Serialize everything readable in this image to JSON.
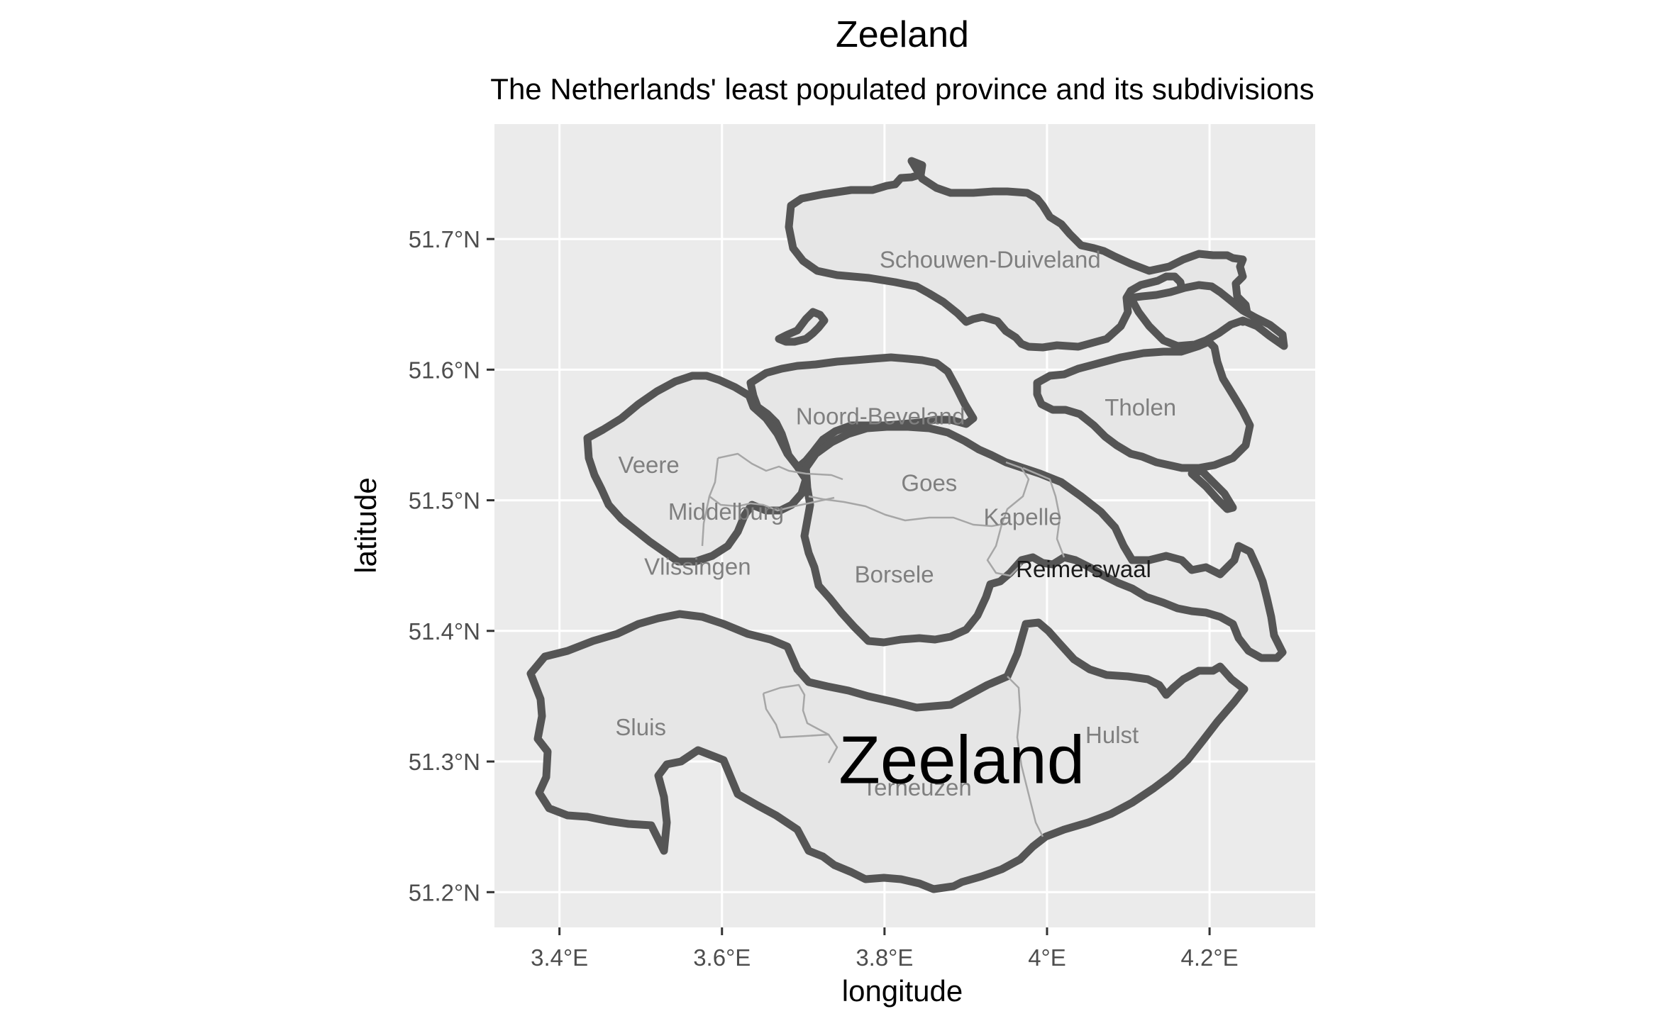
{
  "chart_data": {
    "type": "map",
    "title": "Zeeland",
    "subtitle": "The Netherlands' least populated province and its subdivisions",
    "xlabel": "longitude",
    "ylabel": "latitude",
    "xlim": [
      3.32,
      4.33
    ],
    "ylim": [
      51.173,
      51.788
    ],
    "x_ticks": [
      {
        "value": 3.4,
        "label": "3.4°E"
      },
      {
        "value": 3.6,
        "label": "3.6°E"
      },
      {
        "value": 3.8,
        "label": "3.8°E"
      },
      {
        "value": 4.0,
        "label": "4°E"
      },
      {
        "value": 4.2,
        "label": "4.2°E"
      }
    ],
    "y_ticks": [
      {
        "value": 51.2,
        "label": "51.2°N"
      },
      {
        "value": 51.3,
        "label": "51.3°N"
      },
      {
        "value": 51.4,
        "label": "51.4°N"
      },
      {
        "value": 51.5,
        "label": "51.5°N"
      },
      {
        "value": 51.6,
        "label": "51.6°N"
      },
      {
        "value": 51.7,
        "label": "51.7°N"
      }
    ],
    "province_label": {
      "text": "Zeeland",
      "lon": 3.895,
      "lat": 51.302
    },
    "municipalities": [
      {
        "name": "Schouwen-Duiveland",
        "lon": 3.93,
        "lat": 51.684,
        "dark": false
      },
      {
        "name": "Noord-Beveland",
        "lon": 3.795,
        "lat": 51.564,
        "dark": false
      },
      {
        "name": "Tholen",
        "lon": 4.115,
        "lat": 51.571,
        "dark": false
      },
      {
        "name": "Veere",
        "lon": 3.51,
        "lat": 51.527,
        "dark": false
      },
      {
        "name": "Middelburg",
        "lon": 3.605,
        "lat": 51.491,
        "dark": false
      },
      {
        "name": "Goes",
        "lon": 3.855,
        "lat": 51.513,
        "dark": false
      },
      {
        "name": "Kapelle",
        "lon": 3.97,
        "lat": 51.487,
        "dark": false
      },
      {
        "name": "Vlissingen",
        "lon": 3.57,
        "lat": 51.449,
        "dark": false
      },
      {
        "name": "Borsele",
        "lon": 3.812,
        "lat": 51.443,
        "dark": false
      },
      {
        "name": "Reimerswaal",
        "lon": 4.045,
        "lat": 51.447,
        "dark": true
      },
      {
        "name": "Sluis",
        "lon": 3.5,
        "lat": 51.326,
        "dark": false
      },
      {
        "name": "Hulst",
        "lon": 4.08,
        "lat": 51.32,
        "dark": false
      },
      {
        "name": "Terneuzen",
        "lon": 3.84,
        "lat": 51.28,
        "dark": false
      }
    ]
  }
}
